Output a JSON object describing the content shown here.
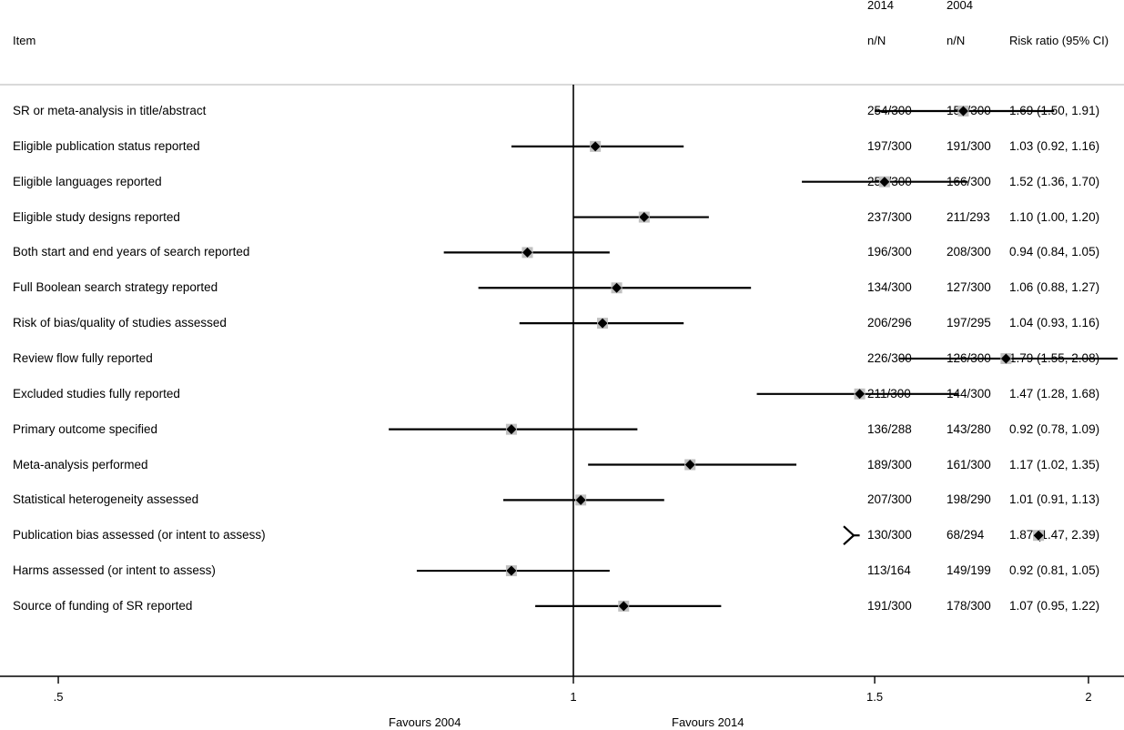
{
  "header": {
    "item_label": "Item",
    "year_2014": "2014",
    "year_2004": "2004",
    "nn_2014": "n/N",
    "nn_2004": "n/N",
    "rr_label": "Risk ratio (95% CI)"
  },
  "footer": {
    "favours_2004": "Favours 2004",
    "favours_2014": "Favours 2014"
  },
  "colors": {
    "marker_box": "#c0c0c0",
    "line": "#000000",
    "rule": "#d9d9d9"
  },
  "chart_data": {
    "type": "forest",
    "xscale": "log",
    "xlim": [
      0.5,
      2.2
    ],
    "reference_line": 1,
    "xticks": [
      {
        "value": 0.5,
        "label": ".5"
      },
      {
        "value": 1,
        "label": "1"
      },
      {
        "value": 1.5,
        "label": "1.5"
      },
      {
        "value": 2,
        "label": "2"
      }
    ],
    "rows": [
      {
        "item": "SR or meta-analysis in title/abstract",
        "n2014": "254/300",
        "n2004": "150/300",
        "rr_text": "1.69 (1.50, 1.91)",
        "rr": 1.69,
        "lo": 1.5,
        "hi": 1.91
      },
      {
        "item": "Eligible publication status reported",
        "n2014": "197/300",
        "n2004": "191/300",
        "rr_text": "1.03 (0.92, 1.16)",
        "rr": 1.03,
        "lo": 0.92,
        "hi": 1.16
      },
      {
        "item": "Eligible languages reported",
        "n2014": "252/300",
        "n2004": "166/300",
        "rr_text": "1.52 (1.36, 1.70)",
        "rr": 1.52,
        "lo": 1.36,
        "hi": 1.7
      },
      {
        "item": "Eligible study designs reported",
        "n2014": "237/300",
        "n2004": "211/293",
        "rr_text": "1.10 (1.00, 1.20)",
        "rr": 1.1,
        "lo": 1.0,
        "hi": 1.2
      },
      {
        "item": "Both start and end years of search reported",
        "n2014": "196/300",
        "n2004": "208/300",
        "rr_text": "0.94 (0.84, 1.05)",
        "rr": 0.94,
        "lo": 0.84,
        "hi": 1.05
      },
      {
        "item": "Full Boolean search strategy reported",
        "n2014": "134/300",
        "n2004": "127/300",
        "rr_text": "1.06 (0.88, 1.27)",
        "rr": 1.06,
        "lo": 0.88,
        "hi": 1.27
      },
      {
        "item": "Risk of bias/quality of studies assessed",
        "n2014": "206/296",
        "n2004": "197/295",
        "rr_text": "1.04 (0.93, 1.16)",
        "rr": 1.04,
        "lo": 0.93,
        "hi": 1.16
      },
      {
        "item": "Review flow fully reported",
        "n2014": "226/300",
        "n2004": "126/300",
        "rr_text": "1.79 (1.55, 2.08)",
        "rr": 1.79,
        "lo": 1.55,
        "hi": 2.08
      },
      {
        "item": "Excluded studies fully reported",
        "n2014": "211/300",
        "n2004": "144/300",
        "rr_text": "1.47 (1.28, 1.68)",
        "rr": 1.47,
        "lo": 1.28,
        "hi": 1.68
      },
      {
        "item": "Primary outcome specified",
        "n2014": "136/288",
        "n2004": "143/280",
        "rr_text": "0.92 (0.78, 1.09)",
        "rr": 0.92,
        "lo": 0.78,
        "hi": 1.09
      },
      {
        "item": "Meta-analysis performed",
        "n2014": "189/300",
        "n2004": "161/300",
        "rr_text": "1.17 (1.02, 1.35)",
        "rr": 1.17,
        "lo": 1.02,
        "hi": 1.35
      },
      {
        "item": "Statistical heterogeneity assessed",
        "n2014": "207/300",
        "n2004": "198/290",
        "rr_text": "1.01 (0.91, 1.13)",
        "rr": 1.01,
        "lo": 0.91,
        "hi": 1.13
      },
      {
        "item": "Publication bias assessed (or intent to assess)",
        "n2014": "130/300",
        "n2004": "68/294",
        "rr_text": "1.87 (1.47, 2.39)",
        "rr": 1.87,
        "lo": 1.47,
        "hi": 2.39,
        "truncated": true
      },
      {
        "item": "Harms assessed (or intent to assess)",
        "n2014": "113/164",
        "n2004": "149/199",
        "rr_text": "0.92 (0.81, 1.05)",
        "rr": 0.92,
        "lo": 0.81,
        "hi": 1.05
      },
      {
        "item": "Source of funding of SR reported",
        "n2014": "191/300",
        "n2004": "178/300",
        "rr_text": "1.07 (0.95, 1.22)",
        "rr": 1.07,
        "lo": 0.95,
        "hi": 1.22
      }
    ]
  }
}
